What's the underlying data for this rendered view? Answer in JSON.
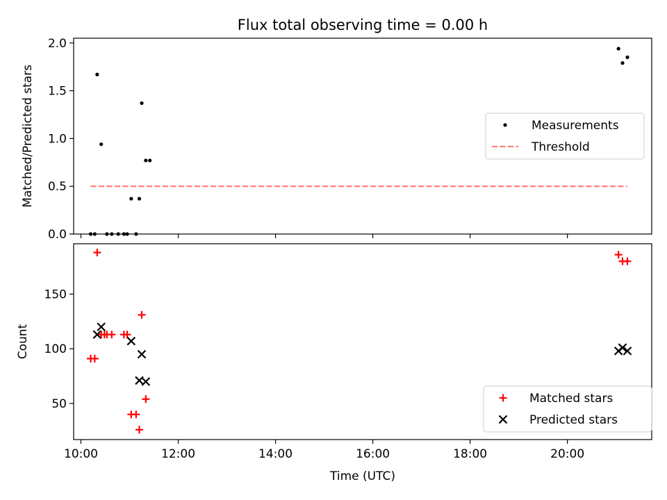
{
  "chart_data": [
    {
      "type": "scatter",
      "title": "Flux total observing time = 0.00 h",
      "xlabel": "",
      "ylabel": "Matched/Predicted stars",
      "xlim": [
        "09:51",
        "21:44"
      ],
      "ylim": [
        0,
        2.05
      ],
      "yticks": [
        0.0,
        0.5,
        1.0,
        1.5,
        2.0
      ],
      "ytick_labels": [
        "0.0",
        "0.5",
        "1.0",
        "1.5",
        "2.0"
      ],
      "grid": false,
      "legend_position": "center-right",
      "series": [
        {
          "name": "Measurements",
          "marker": "dot",
          "color": "#000000",
          "x": [
            "10:12",
            "10:17",
            "10:20",
            "10:25",
            "10:32",
            "10:38",
            "10:46",
            "10:53",
            "10:57",
            "11:02",
            "11:08",
            "11:12",
            "11:15",
            "11:20",
            "11:25",
            "21:03",
            "21:08",
            "21:14"
          ],
          "y": [
            0.0,
            0.0,
            1.67,
            0.94,
            0.0,
            0.0,
            0.0,
            0.0,
            0.0,
            0.37,
            0.0,
            0.37,
            1.37,
            0.77,
            0.77,
            1.94,
            1.79,
            1.85
          ]
        },
        {
          "name": "Threshold",
          "marker": "dashed-line",
          "color": "#ff7f7f",
          "x": [
            "10:12",
            "21:14"
          ],
          "y": [
            0.5,
            0.5
          ]
        }
      ]
    },
    {
      "type": "scatter",
      "title": "",
      "xlabel": "Time (UTC)",
      "ylabel": "Count",
      "xlim": [
        "09:51",
        "21:44"
      ],
      "ylim": [
        17,
        196
      ],
      "xticks": [
        "10:00",
        "12:00",
        "14:00",
        "16:00",
        "18:00",
        "20:00"
      ],
      "yticks": [
        50,
        100,
        150
      ],
      "ytick_labels": [
        "50",
        "100",
        "150"
      ],
      "grid": false,
      "legend_position": "bottom-right",
      "series": [
        {
          "name": "Matched stars",
          "marker": "plus",
          "color": "#ff0000",
          "x": [
            "10:12",
            "10:17",
            "10:20",
            "10:25",
            "10:29",
            "10:32",
            "10:38",
            "10:53",
            "10:57",
            "11:02",
            "11:08",
            "11:12",
            "11:15",
            "11:20",
            "21:03",
            "21:08",
            "21:14"
          ],
          "y": [
            91,
            91,
            188,
            113,
            113,
            113,
            113,
            113,
            113,
            40,
            40,
            26,
            131,
            54,
            186,
            180,
            180
          ]
        },
        {
          "name": "Predicted stars",
          "marker": "x",
          "color": "#000000",
          "x": [
            "10:20",
            "10:25",
            "11:02",
            "11:12",
            "11:15",
            "11:20",
            "21:03",
            "21:08",
            "21:14"
          ],
          "y": [
            113,
            120,
            107,
            71,
            95,
            70,
            98,
            101,
            98
          ]
        }
      ]
    }
  ]
}
